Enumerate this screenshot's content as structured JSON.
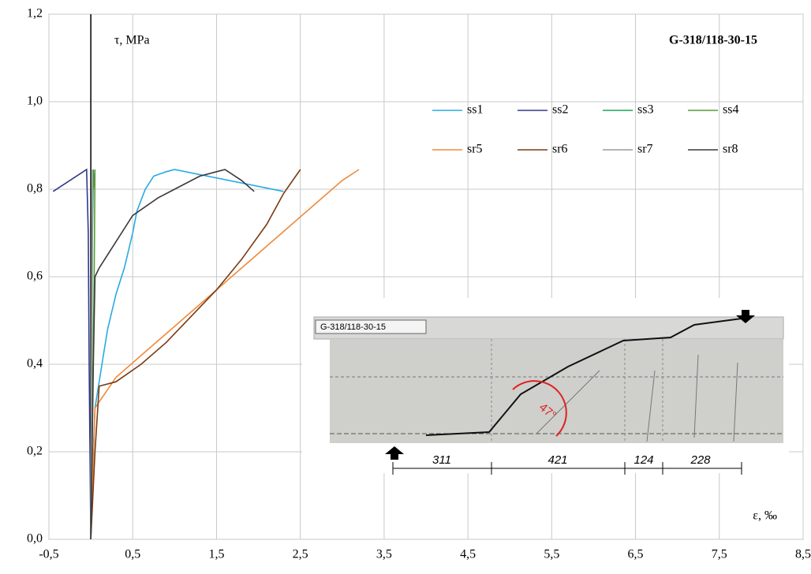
{
  "chart_data": {
    "type": "line",
    "title": "G-318/118-30-15",
    "ylabel": "τ, MPa",
    "xlabel": "ε, ‰",
    "xlim": [
      -0.5,
      8.5
    ],
    "ylim": [
      0,
      1.2
    ],
    "xticks": [
      {
        "value": -0.5,
        "label": "-0,5"
      },
      {
        "value": 0.5,
        "label": "0,5"
      },
      {
        "value": 1.5,
        "label": "1,5"
      },
      {
        "value": 2.5,
        "label": "2,5"
      },
      {
        "value": 3.5,
        "label": "3,5"
      },
      {
        "value": 4.5,
        "label": "4,5"
      },
      {
        "value": 5.5,
        "label": "5,5"
      },
      {
        "value": 6.5,
        "label": "6,5"
      },
      {
        "value": 7.5,
        "label": "7,5"
      },
      {
        "value": 8.5,
        "label": "8,5"
      }
    ],
    "yticks": [
      {
        "value": 0,
        "label": "0,0"
      },
      {
        "value": 0.2,
        "label": "0,2"
      },
      {
        "value": 0.4,
        "label": "0,4"
      },
      {
        "value": 0.6,
        "label": "0,6"
      },
      {
        "value": 0.8,
        "label": "0,8"
      },
      {
        "value": 1.0,
        "label": "1,0"
      },
      {
        "value": 1.2,
        "label": "1,2"
      }
    ],
    "grid": true,
    "series": [
      {
        "name": "ss1",
        "color": "#29aae1",
        "x": [
          0,
          0.02,
          0.05,
          0.1,
          0.15,
          0.2,
          0.3,
          0.4,
          0.5,
          0.55,
          0.65,
          0.75,
          0.9,
          1.0,
          2.3
        ],
        "values": [
          0,
          0.15,
          0.3,
          0.36,
          0.42,
          0.48,
          0.56,
          0.62,
          0.7,
          0.75,
          0.8,
          0.83,
          0.84,
          0.845,
          0.795
        ]
      },
      {
        "name": "ss2",
        "color": "#2e3a8c",
        "x": [
          0,
          -0.02,
          -0.03,
          -0.05,
          -0.45
        ],
        "values": [
          0,
          0.4,
          0.7,
          0.845,
          0.795
        ]
      },
      {
        "name": "ss3",
        "color": "#1aa35a",
        "x": [
          0,
          0.01,
          0.02,
          0.03
        ],
        "values": [
          0,
          0.4,
          0.7,
          0.845
        ]
      },
      {
        "name": "ss4",
        "color": "#5a9a3a",
        "x": [
          0,
          0.02,
          0.04,
          0.05,
          0.03
        ],
        "values": [
          0,
          0.3,
          0.6,
          0.845,
          0.8
        ]
      },
      {
        "name": "sr5",
        "color": "#f08a3a",
        "x": [
          0,
          0.05,
          0.3,
          0.6,
          0.9,
          1.2,
          1.5,
          1.8,
          2.1,
          2.4,
          2.7,
          3.0,
          3.2
        ],
        "values": [
          0,
          0.3,
          0.37,
          0.42,
          0.47,
          0.52,
          0.57,
          0.62,
          0.67,
          0.72,
          0.77,
          0.82,
          0.845
        ]
      },
      {
        "name": "sr6",
        "color": "#7a3a12",
        "x": [
          0,
          0.05,
          0.1,
          0.3,
          0.6,
          0.9,
          1.2,
          1.5,
          1.8,
          2.1,
          2.3,
          2.5
        ],
        "values": [
          0,
          0.2,
          0.35,
          0.36,
          0.4,
          0.45,
          0.51,
          0.57,
          0.64,
          0.72,
          0.79,
          0.845
        ]
      },
      {
        "name": "sr7",
        "color": "#9a9a9a",
        "x": [
          0,
          0.01,
          0.02
        ],
        "values": [
          0,
          0.5,
          0.845
        ]
      },
      {
        "name": "sr8",
        "color": "#3a3a3a",
        "x": [
          0,
          0.03,
          0.05,
          0.1,
          0.3,
          0.5,
          0.8,
          1.0,
          1.3,
          1.5,
          1.6,
          1.8,
          1.95
        ],
        "values": [
          0,
          0.4,
          0.6,
          0.62,
          0.68,
          0.74,
          0.78,
          0.8,
          0.83,
          0.84,
          0.845,
          0.82,
          0.795
        ]
      }
    ]
  },
  "inset": {
    "label": "G-318/118-30-15",
    "angle": "47°",
    "dimensions": [
      "311",
      "421",
      "124",
      "228"
    ]
  }
}
